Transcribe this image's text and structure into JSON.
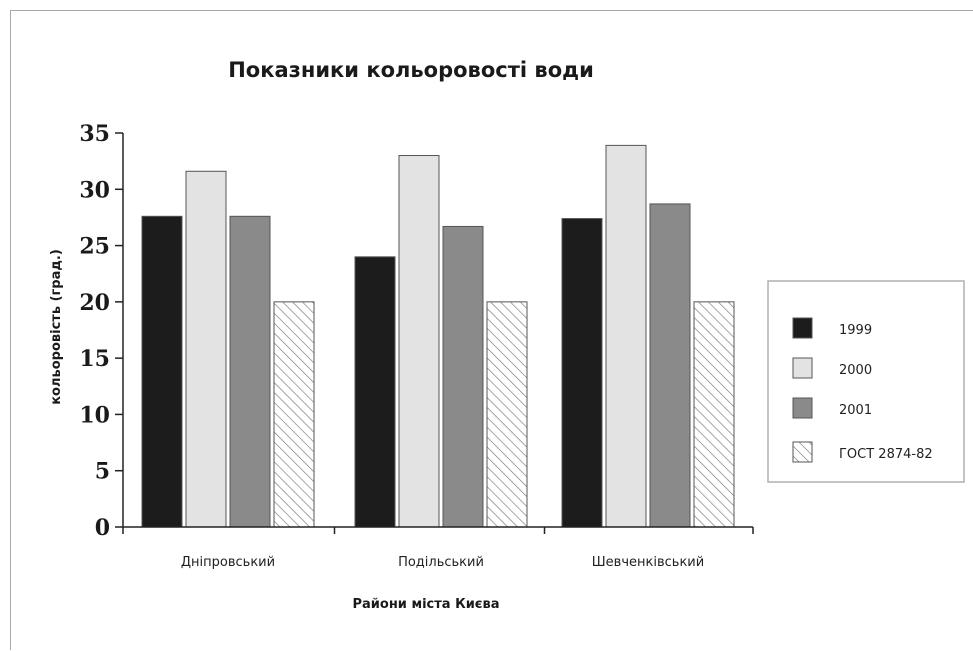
{
  "chart_data": {
    "type": "bar",
    "title": "Показники кольоровості води",
    "xlabel": "Райони міста Києва",
    "ylabel": "кольоровість (град.)",
    "categories": [
      "Дніпровський",
      "Подільський",
      "Шевченківський"
    ],
    "ylim": [
      0,
      35
    ],
    "yticks": [
      0,
      5,
      10,
      15,
      20,
      25,
      30,
      35
    ],
    "grid": false,
    "legend": "right",
    "series": [
      {
        "name": "1999",
        "values": [
          27.6,
          24.0,
          27.4
        ],
        "color": "#1c1c1c",
        "pattern": "solid"
      },
      {
        "name": "2000",
        "values": [
          31.6,
          33.0,
          33.9
        ],
        "color": "#e3e3e3",
        "pattern": "solid"
      },
      {
        "name": "2001",
        "values": [
          27.6,
          26.7,
          28.7
        ],
        "color": "#8a8a8a",
        "pattern": "solid"
      },
      {
        "name": "ГОСТ 2874-82",
        "values": [
          20,
          20,
          20
        ],
        "color": "#ffffff",
        "pattern": "hatch"
      }
    ]
  }
}
